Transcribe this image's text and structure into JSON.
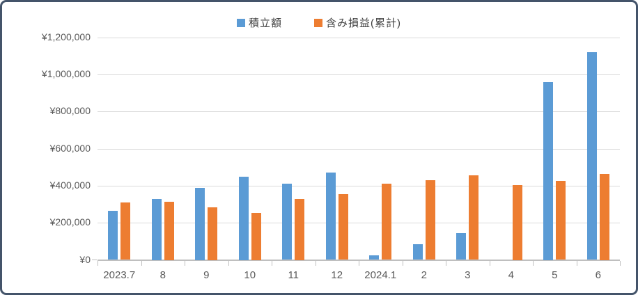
{
  "window": {
    "background_color": "#FFFFFF",
    "border_color": "#44546A"
  },
  "legend": {
    "items": [
      {
        "label": "積立額",
        "color": "#5B9BD5"
      },
      {
        "label": "含み損益(累計)",
        "color": "#ED7D31"
      }
    ]
  },
  "chart_data": {
    "type": "bar",
    "title": "",
    "categories": [
      "2023.7",
      "8",
      "9",
      "10",
      "11",
      "12",
      "2024.1",
      "2",
      "3",
      "4",
      "5",
      "6"
    ],
    "series": [
      {
        "name": "積立額",
        "color": "#5B9BD5",
        "values": [
          265000,
          330000,
          390000,
          450000,
          410000,
          470000,
          25000,
          85000,
          145000,
          0,
          960000,
          1120000
        ]
      },
      {
        "name": "含み損益(累計)",
        "color": "#ED7D31",
        "values": [
          310000,
          315000,
          285000,
          255000,
          330000,
          355000,
          410000,
          430000,
          455000,
          405000,
          425000,
          465000
        ]
      }
    ],
    "xlabel": "",
    "ylabel": "",
    "ylim": [
      0,
      1200000
    ],
    "y_tick_step": 200000,
    "y_tick_labels": [
      "¥1,200,000",
      "¥1,000,000",
      "¥800,000",
      "¥600,000",
      "¥400,000",
      "¥200,000",
      "¥0"
    ],
    "grid": true,
    "legend_position": "top",
    "gridline_color": "#D9D9D9",
    "axis_line_color": "#BFBFBF",
    "tick_label_color": "#595959",
    "legend_text_color": "#404040"
  }
}
